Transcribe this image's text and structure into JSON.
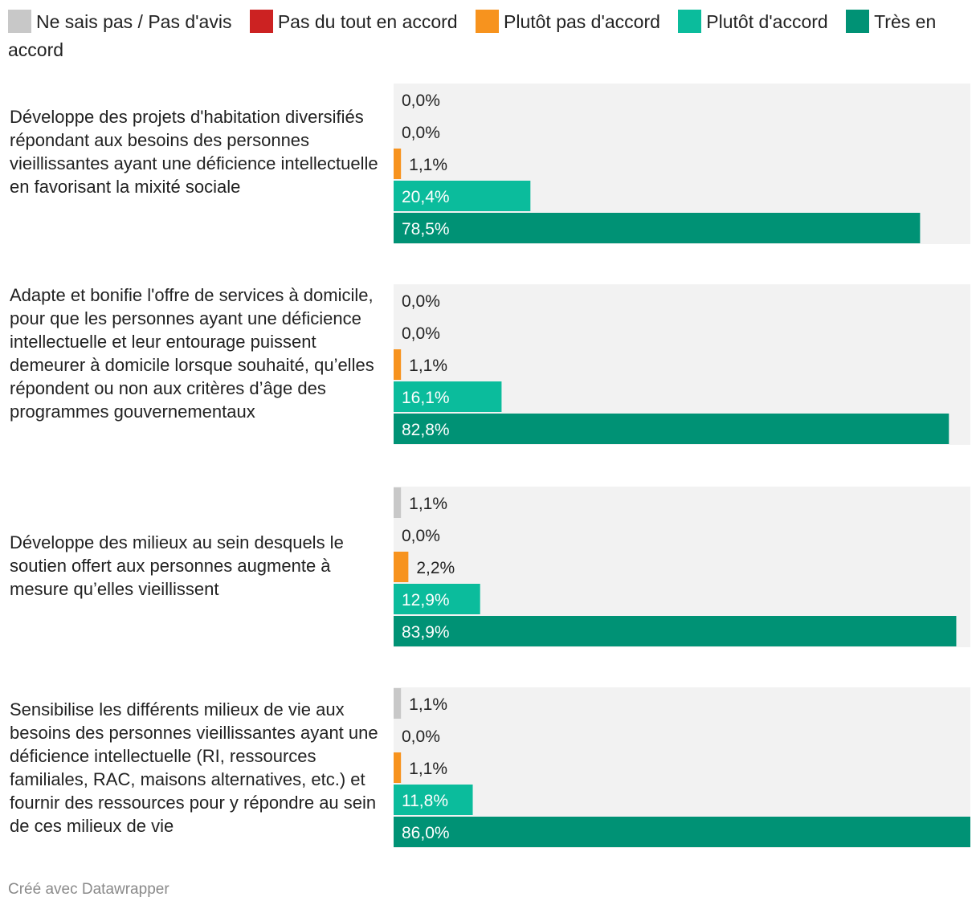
{
  "legend": [
    {
      "label": "Ne sais pas / Pas d'avis",
      "color": "#c8c8c8"
    },
    {
      "label": "Pas du tout en accord",
      "color": "#cc2222"
    },
    {
      "label": "Plutôt pas d'accord",
      "color": "#f7931e"
    },
    {
      "label": "Plutôt d'accord",
      "color": "#0bbc9c"
    },
    {
      "label": "Très en accord",
      "color": "#009275"
    }
  ],
  "chart_data": {
    "type": "bar",
    "orientation": "horizontal",
    "unit": "%",
    "xlim": [
      0,
      86
    ],
    "series_names": [
      "Ne sais pas / Pas d'avis",
      "Pas du tout en accord",
      "Plutôt pas d'accord",
      "Plutôt d'accord",
      "Très en accord"
    ],
    "groups": [
      {
        "question": "Développe des projets d'habitation diversifiés répondant aux besoins des personnes vieillissantes ayant une déficience intellectuelle en favorisant la mixité sociale",
        "values": [
          0.0,
          0.0,
          1.1,
          20.4,
          78.5
        ],
        "labels": [
          "0,0%",
          "0,0%",
          "1,1%",
          "20,4%",
          "78,5%"
        ]
      },
      {
        "question": "Adapte et bonifie l'offre de services à domicile, pour que les personnes ayant une déficience intellectuelle et leur entourage puissent demeurer à domicile lorsque souhaité, qu’elles répondent ou non aux critères d’âge des programmes gouvernementaux",
        "values": [
          0.0,
          0.0,
          1.1,
          16.1,
          82.8
        ],
        "labels": [
          "0,0%",
          "0,0%",
          "1,1%",
          "16,1%",
          "82,8%"
        ]
      },
      {
        "question": "Développe des milieux au sein desquels le soutien offert aux personnes augmente à mesure qu’elles vieillissent",
        "values": [
          1.1,
          0.0,
          2.2,
          12.9,
          83.9
        ],
        "labels": [
          "1,1%",
          "0,0%",
          "2,2%",
          "12,9%",
          "83,9%"
        ]
      },
      {
        "question": "Sensibilise les différents milieux de vie aux besoins des personnes vieillissantes ayant une déficience intellectuelle (RI, ressources familiales, RAC, maisons alternatives, etc.) et fournir des ressources pour y répondre au sein de ces milieux de vie",
        "values": [
          1.1,
          0.0,
          1.1,
          11.8,
          86.0
        ],
        "labels": [
          "1,1%",
          "0,0%",
          "1,1%",
          "11,8%",
          "86,0%"
        ]
      }
    ]
  },
  "footer": "Créé avec Datawrapper"
}
